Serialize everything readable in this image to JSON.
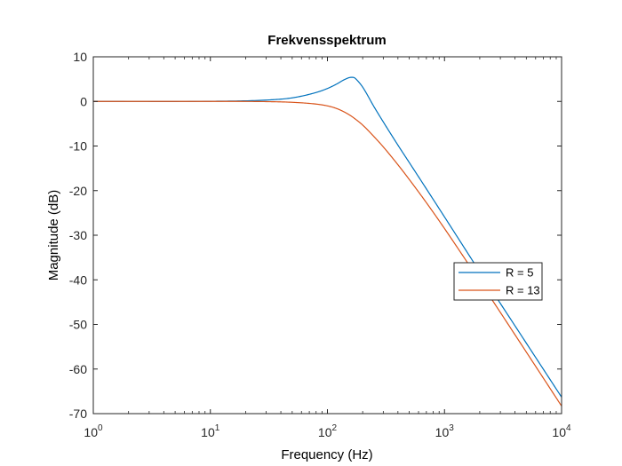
{
  "chart_data": {
    "type": "line",
    "title": "Frekvensspektrum",
    "xlabel": "Frequency  (Hz)",
    "ylabel": "Magnitude (dB)",
    "xscale": "log",
    "xlim": [
      1,
      10000
    ],
    "ylim": [
      -70,
      10
    ],
    "xticks": [
      1,
      10,
      100,
      1000,
      10000
    ],
    "xtick_labels": [
      {
        "base": "10",
        "exp": "0"
      },
      {
        "base": "10",
        "exp": "1"
      },
      {
        "base": "10",
        "exp": "2"
      },
      {
        "base": "10",
        "exp": "3"
      },
      {
        "base": "10",
        "exp": "4"
      }
    ],
    "yticks": [
      10,
      0,
      -10,
      -20,
      -30,
      -40,
      -50,
      -60,
      -70
    ],
    "ytick_labels": [
      "10",
      "0",
      "-10",
      "-20",
      "-30",
      "-40",
      "-50",
      "-60",
      "-70"
    ],
    "grid": false,
    "legend_position": "right",
    "series": [
      {
        "name": "R = 5",
        "color": "#0072bd",
        "x": [
          1,
          10,
          30,
          50,
          80,
          100,
          120,
          140,
          160,
          170,
          180,
          200,
          250,
          300,
          400,
          500,
          700,
          1000,
          2000,
          5000,
          10000
        ],
        "y": [
          0,
          0.03,
          0.3,
          0.8,
          2.0,
          2.9,
          3.9,
          4.9,
          5.4,
          5.3,
          4.7,
          3.2,
          -1.2,
          -4.6,
          -9.8,
          -13.7,
          -19.6,
          -25.9,
          -38.2,
          -54.2,
          -66.3
        ]
      },
      {
        "name": "R = 13",
        "color": "#d95319",
        "x": [
          1,
          10,
          30,
          50,
          80,
          100,
          120,
          140,
          160,
          170,
          180,
          200,
          250,
          300,
          400,
          500,
          700,
          1000,
          2000,
          5000,
          10000
        ],
        "y": [
          0,
          0,
          -0.05,
          -0.2,
          -0.6,
          -1.0,
          -1.6,
          -2.4,
          -3.3,
          -3.8,
          -4.3,
          -5.3,
          -7.9,
          -10.2,
          -14.2,
          -17.5,
          -22.7,
          -28.5,
          -40.3,
          -56.2,
          -68.3
        ]
      }
    ]
  }
}
